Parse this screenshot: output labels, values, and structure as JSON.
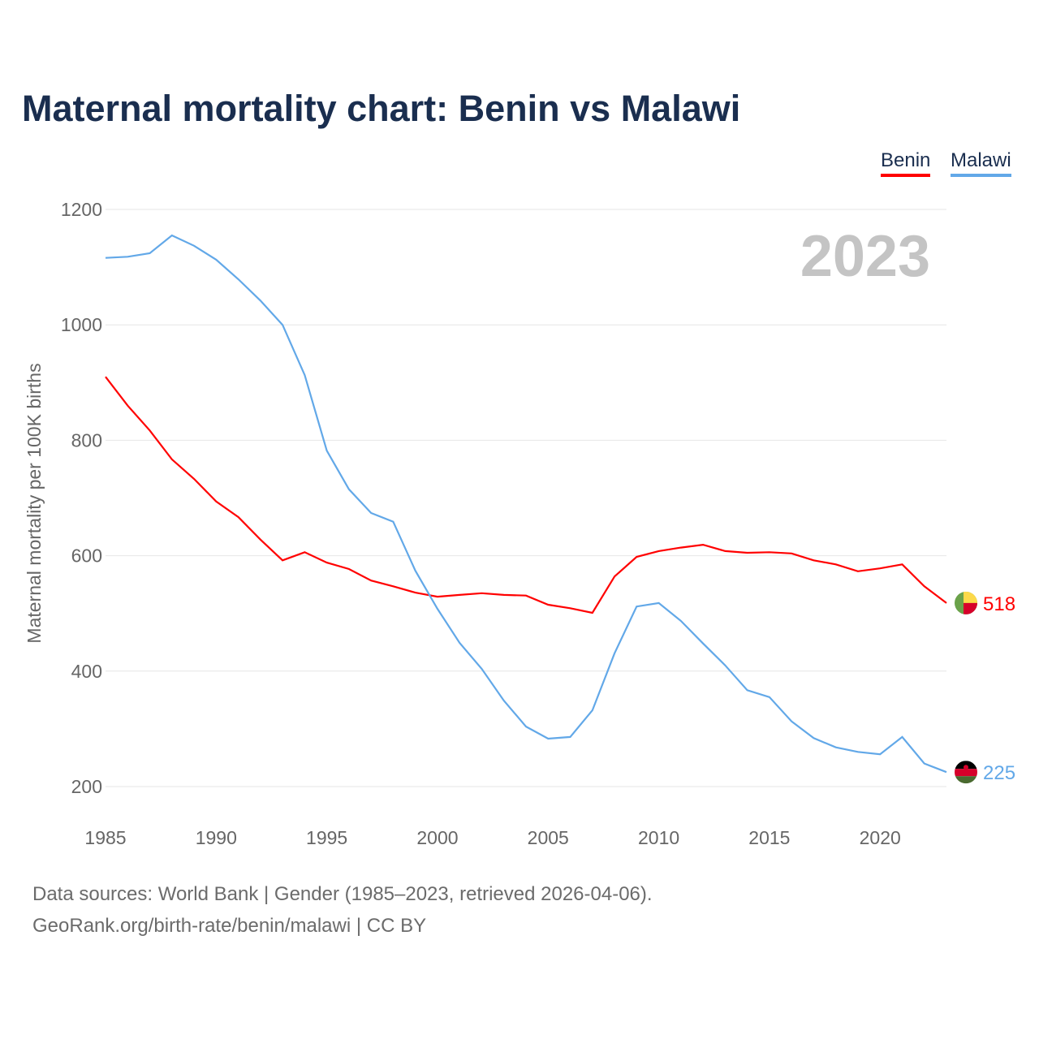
{
  "chart_data": {
    "type": "line",
    "title": "Maternal mortality chart: Benin vs Malawi",
    "xlabel": "",
    "ylabel": "Maternal mortality per 100K births",
    "xlim": [
      1985,
      2023
    ],
    "ylim": [
      200,
      1200
    ],
    "yticks": [
      200,
      400,
      600,
      800,
      1000,
      1200
    ],
    "xticks": [
      1985,
      1990,
      1995,
      2000,
      2005,
      2010,
      2015,
      2020
    ],
    "grid": true,
    "legend": "top-right",
    "year_label": "2023",
    "x": [
      1985,
      1986,
      1987,
      1988,
      1989,
      1990,
      1991,
      1992,
      1993,
      1994,
      1995,
      1996,
      1997,
      1998,
      1999,
      2000,
      2001,
      2002,
      2003,
      2004,
      2005,
      2006,
      2007,
      2008,
      2009,
      2010,
      2011,
      2012,
      2013,
      2014,
      2015,
      2016,
      2017,
      2018,
      2019,
      2020,
      2021,
      2022,
      2023
    ],
    "series": [
      {
        "name": "Benin",
        "color": "#ff0000",
        "end_label": "518",
        "values": [
          910,
          860,
          817,
          767,
          733,
          694,
          667,
          628,
          592,
          606,
          588,
          577,
          557,
          547,
          536,
          529,
          532,
          535,
          532,
          531,
          515,
          509,
          501,
          564,
          598,
          608,
          614,
          619,
          608,
          605,
          606,
          604,
          592,
          585,
          573,
          578,
          585,
          547,
          518
        ]
      },
      {
        "name": "Malawi",
        "color": "#62a8e8",
        "end_label": "225",
        "values": [
          1116,
          1118,
          1124,
          1155,
          1137,
          1113,
          1079,
          1042,
          1000,
          913,
          782,
          715,
          674,
          659,
          574,
          508,
          449,
          404,
          349,
          304,
          283,
          286,
          332,
          431,
          512,
          518,
          487,
          448,
          410,
          367,
          355,
          313,
          284,
          268,
          260,
          256,
          286,
          240,
          225
        ]
      }
    ]
  },
  "footer": {
    "line1": "Data sources: World Bank | Gender (1985–2023, retrieved 2026-04-06).",
    "line2": "GeoRank.org/birth-rate/benin/malawi | CC BY"
  }
}
